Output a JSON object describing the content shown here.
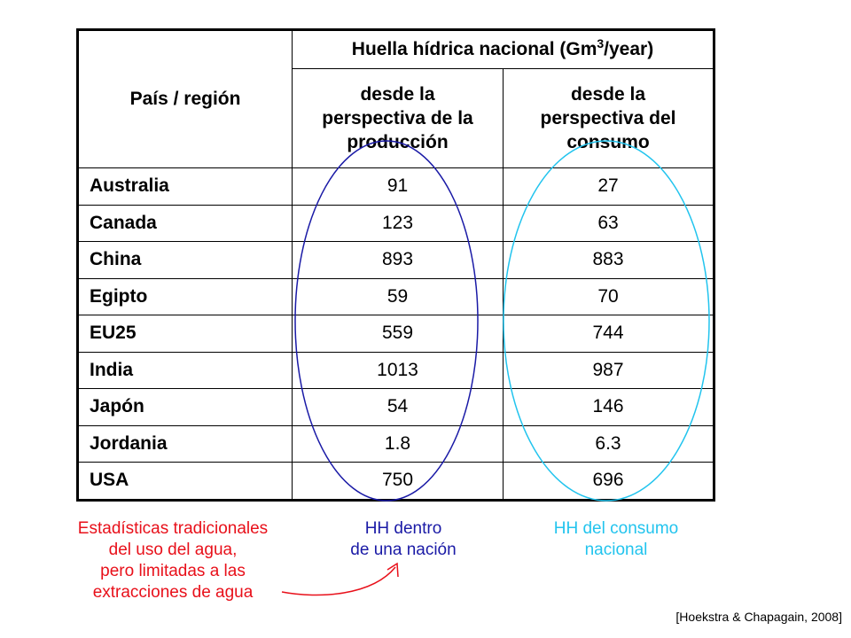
{
  "table": {
    "region_header": "País / región",
    "main_header_prefix": "Huella hídrica nacional (Gm",
    "main_header_sup": "3",
    "main_header_suffix": "/year)",
    "col_production": [
      "desde la",
      "perspectiva de la",
      "producción"
    ],
    "col_consumption": [
      "desde la",
      "perspectiva del",
      "consumo"
    ],
    "rows": [
      {
        "country": "Australia",
        "production": "91",
        "consumption": "27"
      },
      {
        "country": "Canada",
        "production": "123",
        "consumption": "63"
      },
      {
        "country": "China",
        "production": "893",
        "consumption": "883"
      },
      {
        "country": "Egipto",
        "production": "59",
        "consumption": "70"
      },
      {
        "country": "EU25",
        "production": "559",
        "consumption": "744"
      },
      {
        "country": "India",
        "production": "1013",
        "consumption": "987"
      },
      {
        "country": "Japón",
        "production": "54",
        "consumption": "146"
      },
      {
        "country": "Jordania",
        "production": "1.8",
        "consumption": "6.3"
      },
      {
        "country": "USA",
        "production": "750",
        "consumption": "696"
      }
    ]
  },
  "notes": {
    "red": [
      "Estadísticas tradicionales",
      "del uso del agua,",
      "pero limitadas a las",
      "extracciones de agua"
    ],
    "blue": [
      "HH dentro",
      "de una nación"
    ],
    "cyan": [
      "HH del consumo",
      "nacional"
    ]
  },
  "citation": "[Hoekstra & Chapagain, 2008]",
  "colors": {
    "red_note": "#e8101a",
    "blue_ellipse": "#1a1aa6",
    "cyan_ellipse": "#22c4ee"
  }
}
